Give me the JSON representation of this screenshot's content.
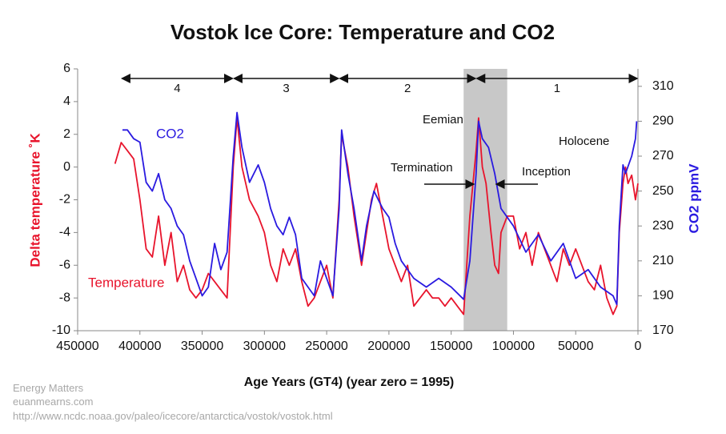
{
  "chart_data": {
    "type": "line",
    "title": "Vostok Ice Core: Temperature and CO2",
    "x_label": "Age Years (GT4) (year zero = 1995)",
    "y_label": "Delta temperature ˚K",
    "y2_label": "CO2 ppmV",
    "xlim": [
      450000,
      0
    ],
    "xticks": [
      450000,
      400000,
      350000,
      300000,
      250000,
      200000,
      150000,
      100000,
      50000,
      0
    ],
    "ylim": [
      -10,
      6
    ],
    "yticks": [
      -10,
      -8,
      -6,
      -4,
      -2,
      0,
      2,
      4,
      6
    ],
    "y2lim": [
      170,
      320
    ],
    "y2ticks": [
      170,
      190,
      210,
      230,
      250,
      270,
      290,
      310
    ],
    "grid": false,
    "shaded_region": [
      140000,
      105000
    ],
    "shade_color": "#c8c8c8",
    "periods": [
      {
        "label": "4",
        "start": 415000,
        "end": 325000
      },
      {
        "label": "3",
        "start": 325000,
        "end": 240000
      },
      {
        "label": "2",
        "start": 240000,
        "end": 130000
      },
      {
        "label": "1",
        "start": 130000,
        "end": 0
      }
    ],
    "annotations": [
      "Eemian",
      "Holocene",
      "Termination",
      "Inception"
    ],
    "series": [
      {
        "name": "Temperature",
        "color": "#e8142c",
        "axis": "y",
        "x": [
          420000,
          415000,
          410000,
          405000,
          400000,
          395000,
          390000,
          385000,
          380000,
          375000,
          370000,
          365000,
          360000,
          355000,
          350000,
          345000,
          340000,
          335000,
          330000,
          325000,
          322000,
          318000,
          312000,
          305000,
          300000,
          295000,
          290000,
          285000,
          280000,
          275000,
          270000,
          265000,
          260000,
          255000,
          250000,
          245000,
          240000,
          238000,
          233000,
          228000,
          222000,
          218000,
          214000,
          210000,
          205000,
          200000,
          195000,
          190000,
          185000,
          180000,
          175000,
          170000,
          165000,
          160000,
          155000,
          150000,
          145000,
          140000,
          135000,
          130000,
          128000,
          125000,
          122000,
          118000,
          115000,
          112000,
          110000,
          105000,
          100000,
          95000,
          90000,
          85000,
          80000,
          75000,
          70000,
          65000,
          60000,
          55000,
          50000,
          45000,
          40000,
          35000,
          30000,
          25000,
          20000,
          17000,
          15000,
          12000,
          10000,
          8000,
          5000,
          2000,
          0
        ],
        "values": [
          0.2,
          1.5,
          1.0,
          0.5,
          -2,
          -5,
          -5.5,
          -3,
          -6,
          -4,
          -7,
          -6,
          -7.5,
          -8,
          -7.5,
          -6.5,
          -7,
          -7.5,
          -8,
          0,
          3,
          0,
          -2,
          -3,
          -4,
          -6,
          -7,
          -5,
          -6,
          -5,
          -7,
          -8.5,
          -8,
          -7,
          -6,
          -8,
          -2,
          2,
          0,
          -3,
          -6,
          -4,
          -2,
          -1,
          -3,
          -5,
          -6,
          -7,
          -6,
          -8.5,
          -8,
          -7.5,
          -8,
          -8,
          -8.5,
          -8,
          -8.5,
          -9,
          -3,
          1,
          3,
          0,
          -1,
          -4,
          -6,
          -6.5,
          -4,
          -3,
          -3,
          -5,
          -4,
          -6,
          -4,
          -5,
          -6,
          -7,
          -5,
          -6,
          -5,
          -6,
          -7,
          -7.5,
          -6,
          -8,
          -9,
          -8.5,
          -4,
          -1,
          0,
          -1,
          -0.5,
          -2,
          -1
        ]
      },
      {
        "name": "CO2",
        "color": "#2a1ae0",
        "axis": "y2",
        "x": [
          414000,
          410000,
          405000,
          400000,
          395000,
          390000,
          385000,
          380000,
          375000,
          370000,
          365000,
          360000,
          355000,
          350000,
          345000,
          340000,
          335000,
          330000,
          325000,
          322000,
          318000,
          312000,
          305000,
          300000,
          295000,
          290000,
          285000,
          280000,
          275000,
          270000,
          265000,
          260000,
          255000,
          250000,
          245000,
          240000,
          238000,
          233000,
          228000,
          222000,
          218000,
          212000,
          205000,
          200000,
          195000,
          190000,
          180000,
          170000,
          160000,
          150000,
          140000,
          135000,
          130000,
          128000,
          125000,
          120000,
          115000,
          110000,
          105000,
          100000,
          90000,
          80000,
          70000,
          60000,
          50000,
          40000,
          30000,
          20000,
          17000,
          15000,
          12000,
          10000,
          5000,
          2000,
          1000
        ],
        "values": [
          285,
          285,
          280,
          278,
          255,
          250,
          260,
          245,
          240,
          230,
          225,
          210,
          200,
          190,
          195,
          220,
          205,
          215,
          270,
          295,
          275,
          255,
          265,
          255,
          240,
          230,
          225,
          235,
          225,
          200,
          195,
          190,
          210,
          200,
          190,
          240,
          285,
          260,
          240,
          210,
          230,
          250,
          240,
          235,
          220,
          210,
          200,
          195,
          200,
          195,
          188,
          210,
          260,
          290,
          280,
          275,
          260,
          240,
          235,
          230,
          215,
          225,
          210,
          220,
          200,
          205,
          195,
          190,
          185,
          230,
          265,
          260,
          270,
          280,
          290
        ]
      }
    ],
    "source": [
      "Energy Matters",
      "euanmearns.com",
      "http://www.ncdc.noaa.gov/paleo/icecore/antarctica/vostok/vostok.html"
    ]
  }
}
